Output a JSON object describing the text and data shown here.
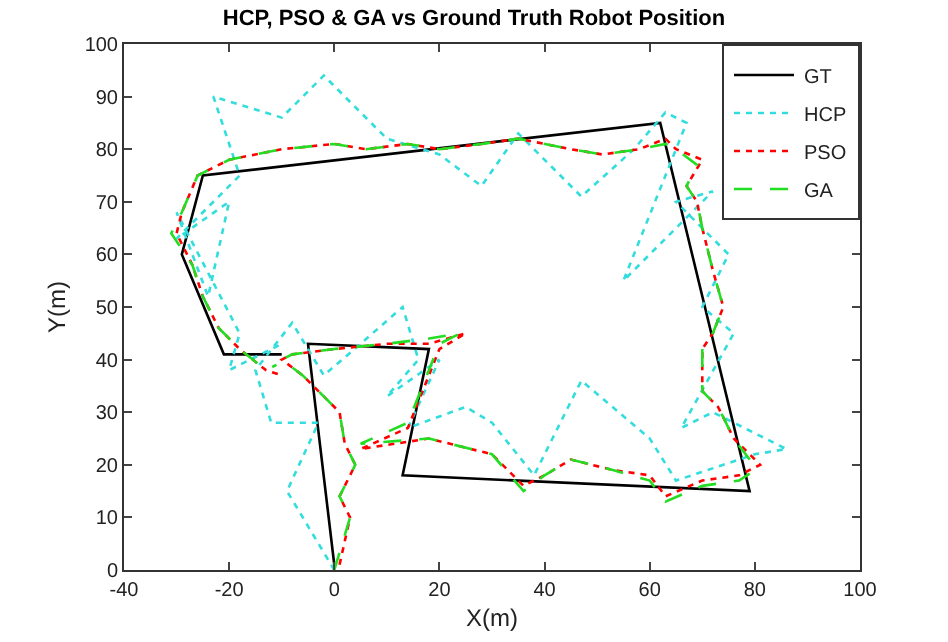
{
  "chart_data": {
    "type": "line",
    "title": "HCP, PSO & GA vs Ground Truth Robot Position",
    "xlabel": "X(m)",
    "ylabel": "Y(m)",
    "xlim": [
      -40,
      100
    ],
    "xticks": [
      -40,
      -20,
      0,
      20,
      40,
      60,
      80,
      100
    ],
    "ylim": [
      0,
      100
    ],
    "yticks": [
      0,
      10,
      20,
      30,
      40,
      50,
      60,
      70,
      80,
      90,
      100
    ],
    "grid": false,
    "legend": "top right",
    "marker": "none",
    "series": [
      {
        "name": "GT",
        "color": "#000000",
        "line_style": "solid",
        "x": [
          0,
          -5,
          18,
          13,
          79,
          62,
          -25,
          -29,
          -21,
          -10
        ],
        "values": [
          1,
          43,
          42,
          18,
          15,
          85,
          75,
          60,
          41,
          41
        ]
      },
      {
        "name": "HCP",
        "color": "#33dddd",
        "line_style": "dotted",
        "x": [
          0,
          -9,
          -3,
          -12,
          -15,
          -8,
          -2,
          5,
          13,
          16,
          10,
          20,
          14,
          25,
          30,
          38,
          47,
          60,
          65,
          80,
          86,
          72,
          66,
          76,
          70,
          75,
          65,
          72,
          55,
          67,
          63,
          57,
          47,
          35,
          28,
          20,
          10,
          -2,
          -10,
          -23,
          -18,
          -30,
          -20,
          -24,
          -30,
          -18,
          -20,
          -10
        ],
        "values": [
          0,
          15,
          28,
          28,
          38,
          47,
          37,
          43,
          50,
          40,
          33,
          40,
          27,
          31,
          28,
          18,
          36,
          25,
          17,
          22,
          23,
          30,
          27,
          45,
          50,
          60,
          70,
          72,
          55,
          85,
          87,
          80,
          71,
          83,
          73,
          79,
          82,
          94,
          86,
          90,
          75,
          63,
          70,
          52,
          68,
          45,
          38,
          43
        ]
      },
      {
        "name": "PSO",
        "color": "#ff0000",
        "line_style": "dotted",
        "x": [
          1,
          3,
          1,
          4,
          2,
          1,
          -2,
          -6,
          -10,
          -8,
          0,
          10,
          18,
          25,
          20,
          14,
          5,
          18,
          22,
          30,
          36,
          40,
          45,
          53,
          60,
          63,
          70,
          77,
          81,
          79,
          76,
          73,
          70,
          70,
          72,
          74,
          72,
          70,
          69,
          67,
          70,
          65,
          63,
          58,
          51,
          45,
          35,
          28,
          20,
          14,
          6,
          0,
          -10,
          -20,
          -26,
          -29,
          -30,
          -27,
          -25,
          -22,
          -18,
          -13,
          -10
        ],
        "values": [
          1,
          10,
          14,
          20,
          24,
          30,
          33,
          37,
          40,
          41,
          42,
          43,
          43,
          45,
          42,
          27,
          23,
          25,
          24,
          22,
          16,
          18,
          21,
          19,
          18,
          14,
          17,
          18,
          20,
          22,
          25,
          31,
          34,
          42,
          45,
          50,
          57,
          65,
          70,
          73,
          78,
          80,
          82,
          80,
          79,
          80,
          82,
          81,
          80,
          81,
          80,
          81,
          80,
          78,
          75,
          68,
          64,
          58,
          52,
          46,
          42,
          38,
          37
        ]
      },
      {
        "name": "GA",
        "color": "#22dd22",
        "line_style": "dashed",
        "x": [
          0,
          3,
          1,
          4,
          2,
          1,
          -2,
          -6,
          -10,
          -8,
          0,
          10,
          18,
          24,
          20,
          14,
          5,
          18,
          22,
          30,
          36,
          40,
          45,
          53,
          60,
          63,
          70,
          77,
          80,
          79,
          76,
          73,
          70,
          70,
          72,
          74,
          72,
          70,
          69,
          67,
          69,
          65,
          63,
          58,
          51,
          45,
          35,
          28,
          20,
          14,
          6,
          0,
          -10,
          -20,
          -26,
          -29,
          -31,
          -27,
          -25,
          -22,
          -18,
          -13,
          -11
        ],
        "values": [
          0,
          10,
          14,
          20,
          24,
          30,
          33,
          37,
          40,
          41,
          42,
          43,
          44,
          45,
          43,
          28,
          24,
          25,
          24,
          22,
          15,
          18,
          21,
          19,
          17,
          13,
          16,
          17,
          19,
          21,
          25,
          31,
          34,
          42,
          45,
          50,
          57,
          65,
          70,
          73,
          77,
          80,
          81,
          80,
          79,
          80,
          82,
          81,
          80,
          81,
          80,
          81,
          80,
          78,
          75,
          68,
          64,
          58,
          52,
          46,
          42,
          38,
          39
        ]
      }
    ]
  }
}
